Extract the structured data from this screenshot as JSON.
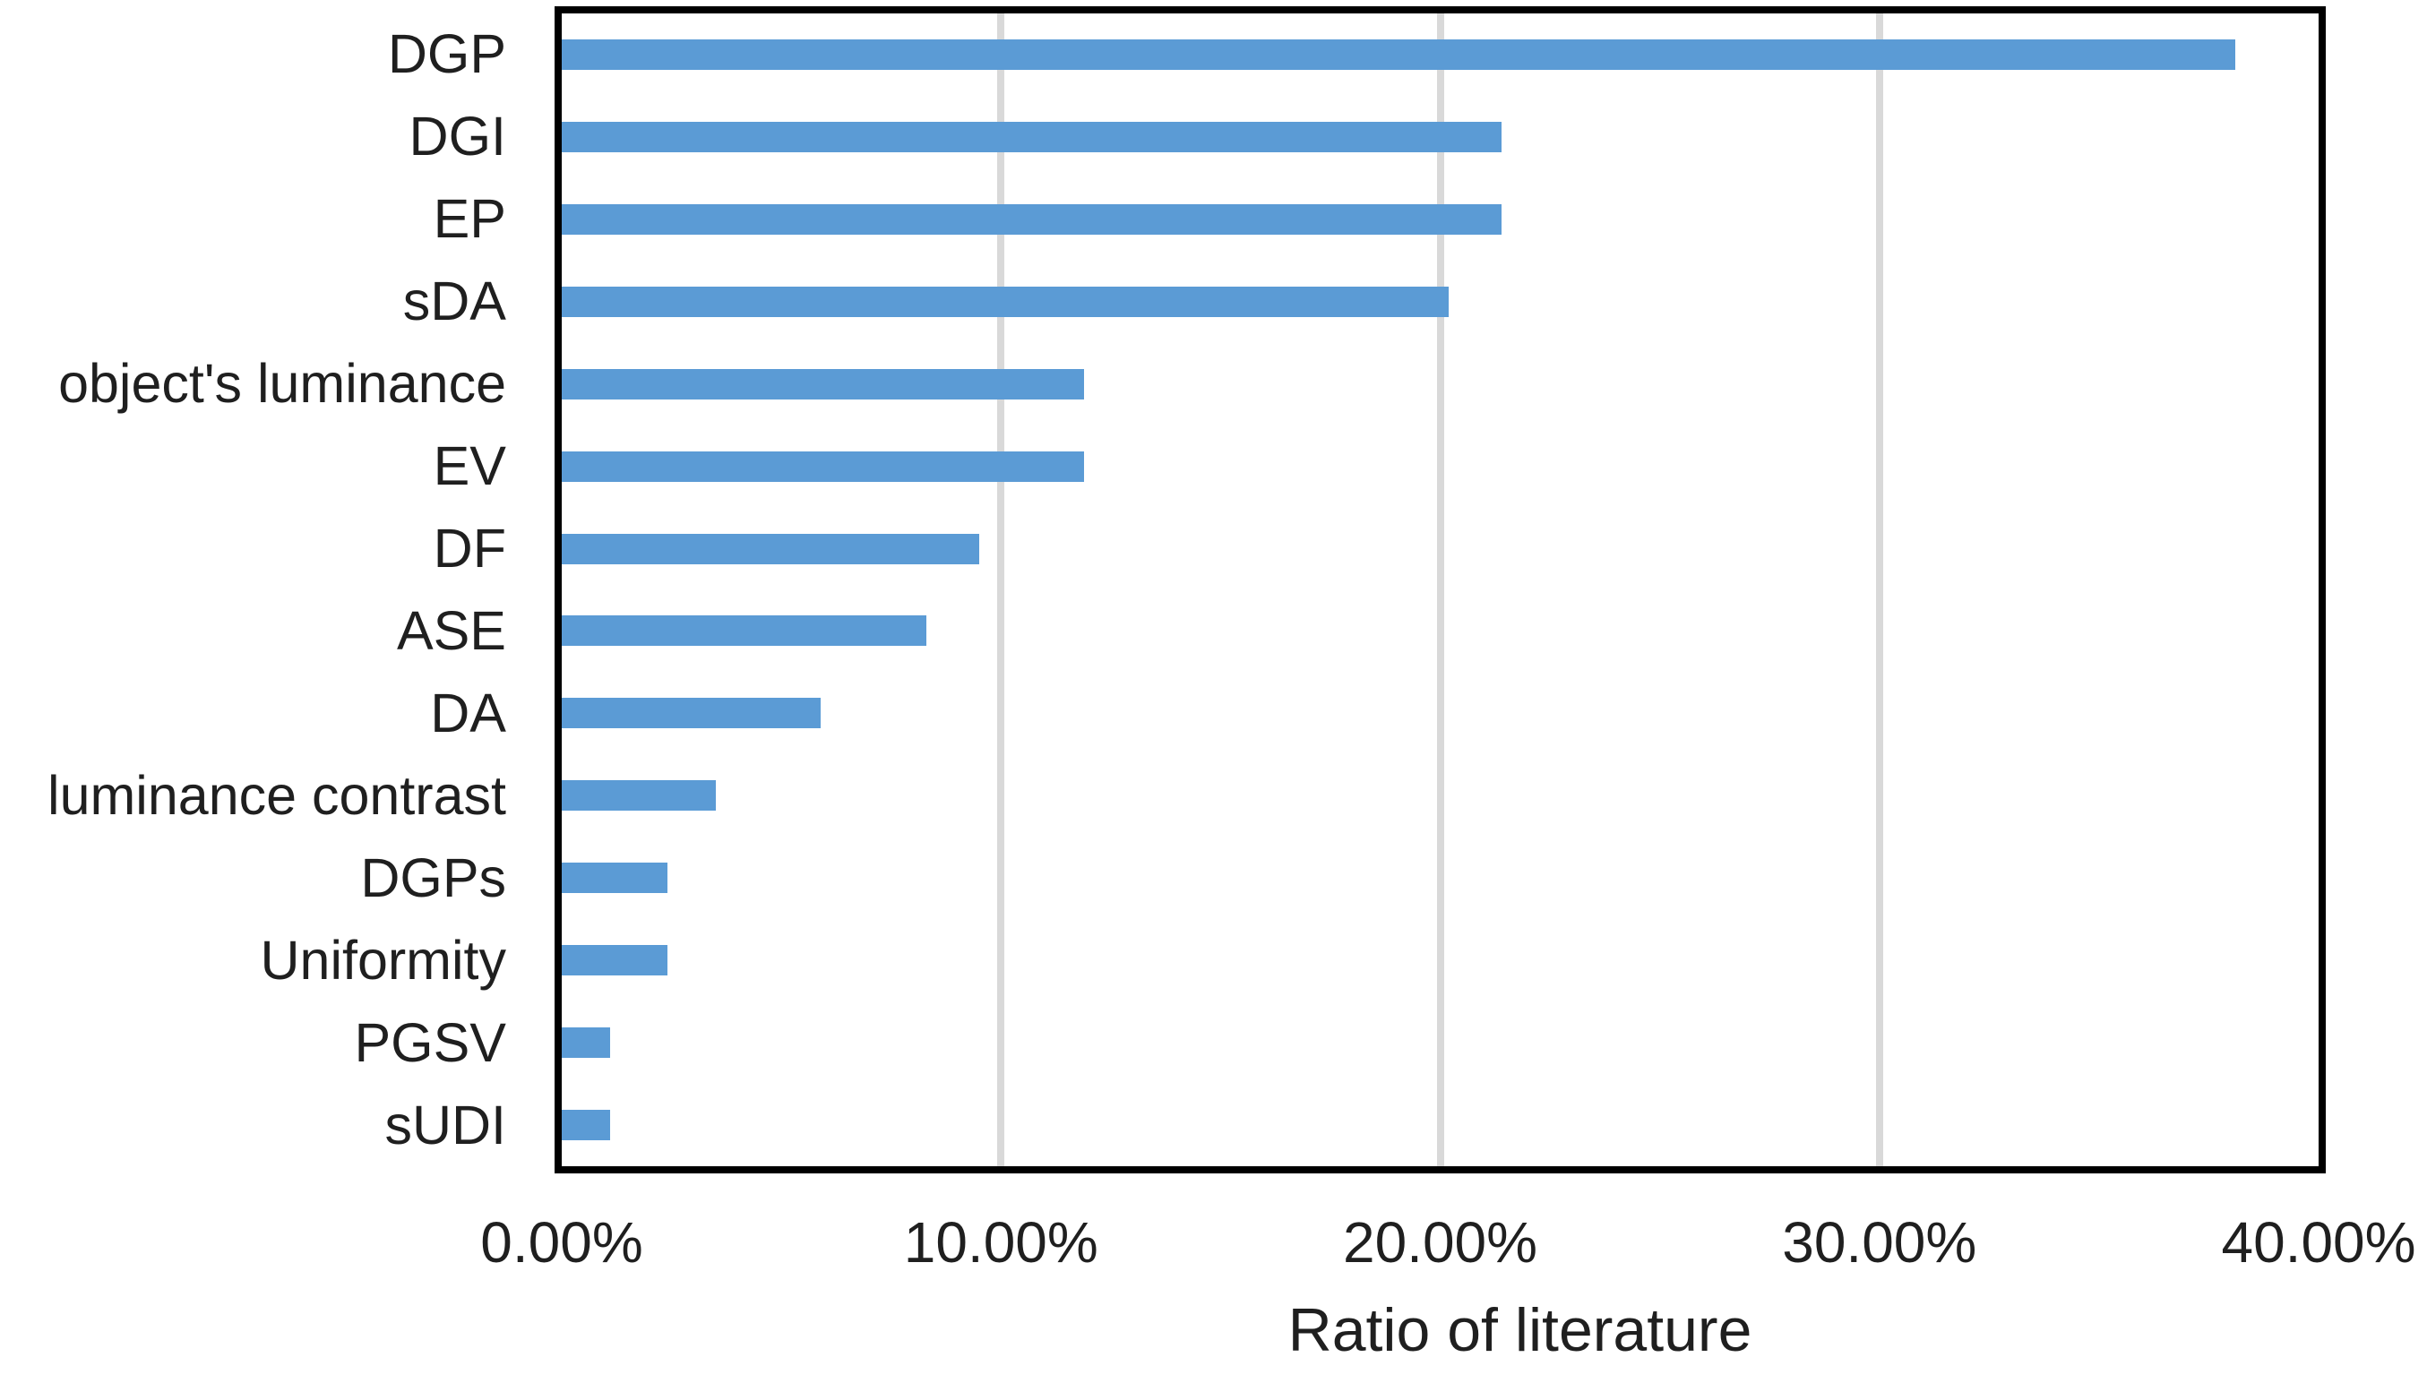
{
  "chart_data": {
    "type": "bar",
    "orientation": "horizontal",
    "title": "",
    "xlabel": "Ratio of literature",
    "ylabel": "",
    "categories": [
      "DGP",
      "DGI",
      "EP",
      "sDA",
      "object's luminance",
      "EV",
      "DF",
      "ASE",
      "DA",
      "luminance contrast",
      "DGPs",
      "Uniformity",
      "PGSV",
      "sUDI"
    ],
    "values": [
      38.1,
      21.4,
      21.4,
      20.2,
      11.9,
      11.9,
      9.5,
      8.3,
      5.9,
      3.5,
      2.4,
      2.4,
      1.1,
      1.1
    ],
    "value_unit": "percent",
    "xlim": [
      0,
      40
    ],
    "xticks": [
      "0.00%",
      "10.00%",
      "20.00%",
      "30.00%",
      "40.00%"
    ],
    "grid": "vertical-gridlines-at-10-20-30",
    "legend": "none",
    "colors": {
      "bar": "#5B9BD5",
      "gridline": "#D9D9D9",
      "axis_border": "#000000",
      "text": "#1f1f1f",
      "background": "#ffffff"
    }
  }
}
